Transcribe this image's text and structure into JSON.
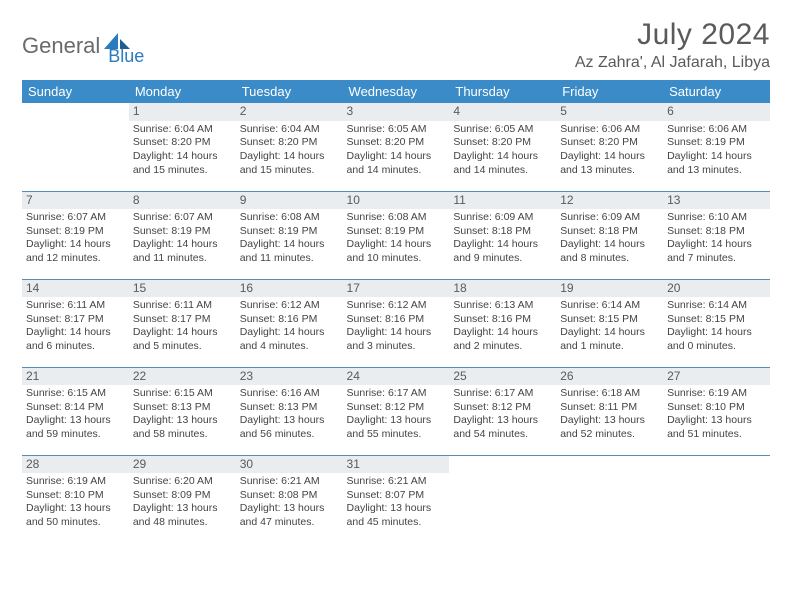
{
  "brand": {
    "part1": "General",
    "part2": "Blue"
  },
  "title": "July 2024",
  "location": "Az Zahra', Al Jafarah, Libya",
  "colors": {
    "header_bg": "#3b8bc9",
    "daynum_bg": "#e9edf0",
    "rule": "#5a8db5",
    "text": "#444444",
    "title_text": "#5a5a5a",
    "brand_gray": "#6a6a6a",
    "brand_blue": "#2b7bbf"
  },
  "weekdays": [
    "Sunday",
    "Monday",
    "Tuesday",
    "Wednesday",
    "Thursday",
    "Friday",
    "Saturday"
  ],
  "start_offset": 1,
  "days": [
    {
      "n": 1,
      "sunrise": "6:04 AM",
      "sunset": "8:20 PM",
      "daylight": "14 hours and 15 minutes."
    },
    {
      "n": 2,
      "sunrise": "6:04 AM",
      "sunset": "8:20 PM",
      "daylight": "14 hours and 15 minutes."
    },
    {
      "n": 3,
      "sunrise": "6:05 AM",
      "sunset": "8:20 PM",
      "daylight": "14 hours and 14 minutes."
    },
    {
      "n": 4,
      "sunrise": "6:05 AM",
      "sunset": "8:20 PM",
      "daylight": "14 hours and 14 minutes."
    },
    {
      "n": 5,
      "sunrise": "6:06 AM",
      "sunset": "8:20 PM",
      "daylight": "14 hours and 13 minutes."
    },
    {
      "n": 6,
      "sunrise": "6:06 AM",
      "sunset": "8:19 PM",
      "daylight": "14 hours and 13 minutes."
    },
    {
      "n": 7,
      "sunrise": "6:07 AM",
      "sunset": "8:19 PM",
      "daylight": "14 hours and 12 minutes."
    },
    {
      "n": 8,
      "sunrise": "6:07 AM",
      "sunset": "8:19 PM",
      "daylight": "14 hours and 11 minutes."
    },
    {
      "n": 9,
      "sunrise": "6:08 AM",
      "sunset": "8:19 PM",
      "daylight": "14 hours and 11 minutes."
    },
    {
      "n": 10,
      "sunrise": "6:08 AM",
      "sunset": "8:19 PM",
      "daylight": "14 hours and 10 minutes."
    },
    {
      "n": 11,
      "sunrise": "6:09 AM",
      "sunset": "8:18 PM",
      "daylight": "14 hours and 9 minutes."
    },
    {
      "n": 12,
      "sunrise": "6:09 AM",
      "sunset": "8:18 PM",
      "daylight": "14 hours and 8 minutes."
    },
    {
      "n": 13,
      "sunrise": "6:10 AM",
      "sunset": "8:18 PM",
      "daylight": "14 hours and 7 minutes."
    },
    {
      "n": 14,
      "sunrise": "6:11 AM",
      "sunset": "8:17 PM",
      "daylight": "14 hours and 6 minutes."
    },
    {
      "n": 15,
      "sunrise": "6:11 AM",
      "sunset": "8:17 PM",
      "daylight": "14 hours and 5 minutes."
    },
    {
      "n": 16,
      "sunrise": "6:12 AM",
      "sunset": "8:16 PM",
      "daylight": "14 hours and 4 minutes."
    },
    {
      "n": 17,
      "sunrise": "6:12 AM",
      "sunset": "8:16 PM",
      "daylight": "14 hours and 3 minutes."
    },
    {
      "n": 18,
      "sunrise": "6:13 AM",
      "sunset": "8:16 PM",
      "daylight": "14 hours and 2 minutes."
    },
    {
      "n": 19,
      "sunrise": "6:14 AM",
      "sunset": "8:15 PM",
      "daylight": "14 hours and 1 minute."
    },
    {
      "n": 20,
      "sunrise": "6:14 AM",
      "sunset": "8:15 PM",
      "daylight": "14 hours and 0 minutes."
    },
    {
      "n": 21,
      "sunrise": "6:15 AM",
      "sunset": "8:14 PM",
      "daylight": "13 hours and 59 minutes."
    },
    {
      "n": 22,
      "sunrise": "6:15 AM",
      "sunset": "8:13 PM",
      "daylight": "13 hours and 58 minutes."
    },
    {
      "n": 23,
      "sunrise": "6:16 AM",
      "sunset": "8:13 PM",
      "daylight": "13 hours and 56 minutes."
    },
    {
      "n": 24,
      "sunrise": "6:17 AM",
      "sunset": "8:12 PM",
      "daylight": "13 hours and 55 minutes."
    },
    {
      "n": 25,
      "sunrise": "6:17 AM",
      "sunset": "8:12 PM",
      "daylight": "13 hours and 54 minutes."
    },
    {
      "n": 26,
      "sunrise": "6:18 AM",
      "sunset": "8:11 PM",
      "daylight": "13 hours and 52 minutes."
    },
    {
      "n": 27,
      "sunrise": "6:19 AM",
      "sunset": "8:10 PM",
      "daylight": "13 hours and 51 minutes."
    },
    {
      "n": 28,
      "sunrise": "6:19 AM",
      "sunset": "8:10 PM",
      "daylight": "13 hours and 50 minutes."
    },
    {
      "n": 29,
      "sunrise": "6:20 AM",
      "sunset": "8:09 PM",
      "daylight": "13 hours and 48 minutes."
    },
    {
      "n": 30,
      "sunrise": "6:21 AM",
      "sunset": "8:08 PM",
      "daylight": "13 hours and 47 minutes."
    },
    {
      "n": 31,
      "sunrise": "6:21 AM",
      "sunset": "8:07 PM",
      "daylight": "13 hours and 45 minutes."
    }
  ],
  "labels": {
    "sunrise": "Sunrise:",
    "sunset": "Sunset:",
    "daylight": "Daylight:"
  }
}
